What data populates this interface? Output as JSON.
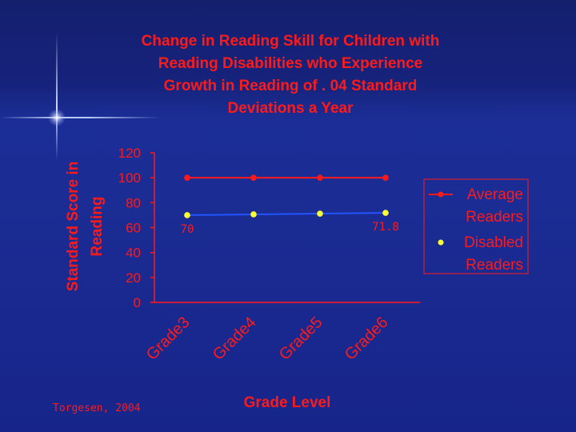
{
  "chart_data": {
    "type": "line",
    "title_lines": [
      "Change in Reading Skill for Children with",
      "Reading Disabilities who Experience",
      "Growth in Reading of . 04 Standard",
      "Deviations a Year"
    ],
    "ylabel_lines": [
      "Standard Score in",
      "Reading"
    ],
    "xlabel": "Grade Level",
    "categories": [
      "Grade3",
      "Grade4",
      "Grade5",
      "Grade6"
    ],
    "ylim": [
      0,
      120
    ],
    "yticks": [
      "0",
      "20",
      "40",
      "60",
      "80",
      "100",
      "120"
    ],
    "series": [
      {
        "name": "Average Readers",
        "values": [
          100,
          100,
          100,
          100
        ],
        "color": "#ff1a1a",
        "marker_color": "#ff1a1a"
      },
      {
        "name": "Disabled Readers",
        "values": [
          70,
          70.6,
          71.2,
          71.8
        ],
        "color": "#2255ff",
        "marker_color": "#ffff33"
      }
    ],
    "data_labels": [
      {
        "series": 1,
        "index": 0,
        "text": "70"
      },
      {
        "series": 1,
        "index": 3,
        "text": "71.8"
      }
    ],
    "legend_entries": [
      {
        "lines": [
          "Average",
          "Readers"
        ]
      },
      {
        "lines": [
          "Disabled",
          "Readers"
        ]
      }
    ],
    "legend_position": "right",
    "grid": false
  },
  "source_note": "Torgesen, 2004",
  "colors": {
    "background": "#1b2c94",
    "text": "#ff1a1a",
    "axis": "#ff1a1a",
    "legend_border": "#ff1a1a"
  }
}
